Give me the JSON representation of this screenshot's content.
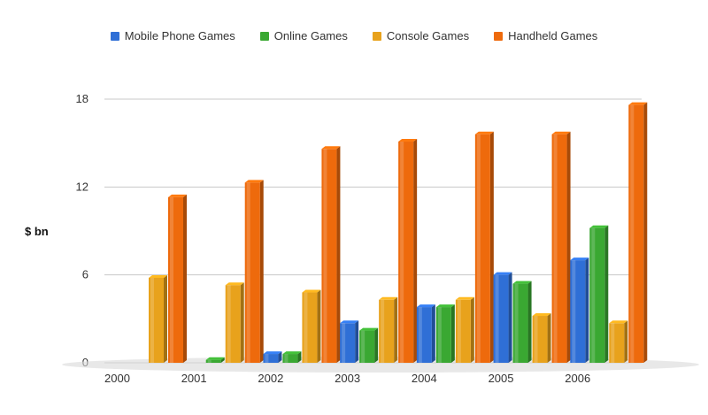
{
  "chart_data": {
    "type": "bar",
    "categories": [
      "2000",
      "2001",
      "2002",
      "2003",
      "2004",
      "2005",
      "2006"
    ],
    "series": [
      {
        "name": "Mobile Phone Games",
        "color": "#2f6fd6",
        "values": [
          0,
          0,
          0.6,
          2.7,
          3.8,
          6.0,
          7.0
        ]
      },
      {
        "name": "Online Games",
        "color": "#3aa832",
        "values": [
          0,
          0.2,
          0.6,
          2.2,
          3.8,
          5.4,
          9.2
        ]
      },
      {
        "name": "Console Games",
        "color": "#e8a21c",
        "values": [
          5.8,
          5.3,
          4.8,
          4.3,
          4.3,
          3.2,
          2.7
        ]
      },
      {
        "name": "Handheld Games",
        "color": "#ee6a0c",
        "values": [
          11.3,
          12.3,
          14.6,
          15.1,
          15.6,
          15.6,
          17.6
        ]
      }
    ],
    "yticks": [
      "0",
      "6",
      "12",
      "18"
    ],
    "ylabel": "$ bn",
    "ylim": [
      0,
      18
    ],
    "grid": true,
    "legend_position": "top"
  }
}
